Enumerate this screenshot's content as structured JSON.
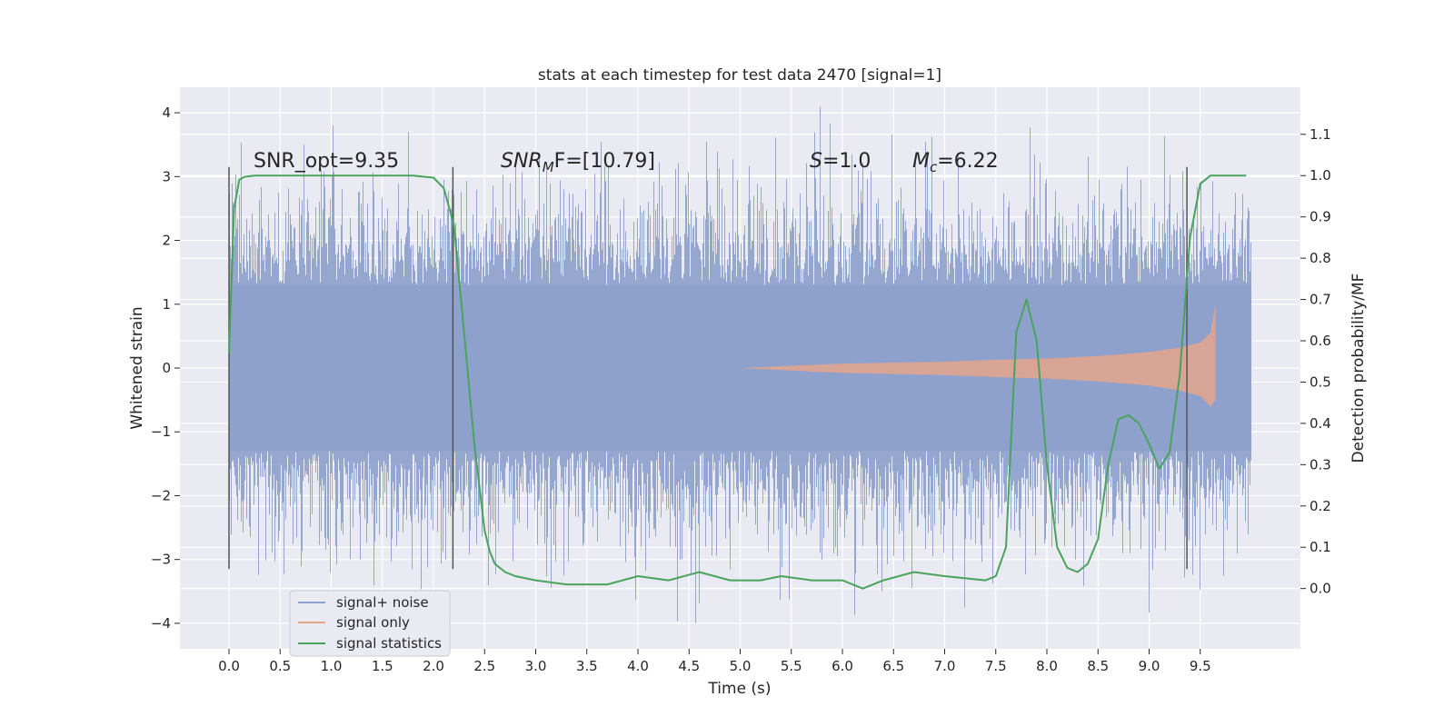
{
  "chart_data": {
    "type": "line",
    "title": "stats at each timestep for test data 2470 [signal=1]",
    "xlabel": "Time (s)",
    "ylabel": "Whitened strain",
    "y2label": "Detection probability/MF",
    "xlim": [
      -0.48,
      10.48
    ],
    "ylim": [
      -4.4,
      4.4
    ],
    "y2lim": [
      -0.146,
      1.214
    ],
    "grid": true,
    "x_ticks": [
      "0.0",
      "0.5",
      "1.0",
      "1.5",
      "2.0",
      "2.5",
      "3.0",
      "3.5",
      "4.0",
      "4.5",
      "5.0",
      "5.5",
      "6.0",
      "6.5",
      "7.0",
      "7.5",
      "8.0",
      "8.5",
      "9.0",
      "9.5"
    ],
    "y_ticks": [
      "4",
      "3",
      "2",
      "1",
      "0",
      "−1",
      "−2",
      "−3",
      "−4"
    ],
    "y2_ticks": [
      "1.1",
      "1.0",
      "0.9",
      "0.8",
      "0.7",
      "0.6",
      "0.5",
      "0.4",
      "0.3",
      "0.2",
      "0.1",
      "0.0"
    ],
    "legend_position": "lower-left",
    "colors": {
      "noise": "#8da0cb",
      "signal": "#e5a48c",
      "statistics": "#4aa35c",
      "vline": "#555555",
      "background": "#eaeaf2",
      "grid": "#ffffff"
    },
    "annotations": {
      "snr_opt": "SNR_opt=9.35",
      "snr_mf_prefix": "SNR",
      "snr_mf_sub": "M",
      "snr_mf_suffix": "F=[10.79]",
      "s_var": "S",
      "s_value": "=1.0",
      "mc_var": "M",
      "mc_sub": "c",
      "mc_value": "=6.22"
    },
    "vertical_lines_x": [
      0.0,
      2.19,
      9.37
    ],
    "series": [
      {
        "name": "signal+ noise",
        "x_range": [
          0.0,
          10.0
        ],
        "envelope_core": [
          -1.3,
          1.3
        ],
        "spike_range": [
          -4.0,
          4.1
        ]
      },
      {
        "name": "signal only",
        "x": [
          5.0,
          6.0,
          7.0,
          7.5,
          8.0,
          8.5,
          9.0,
          9.3,
          9.5,
          9.6,
          9.65
        ],
        "amplitude": [
          0.0,
          0.07,
          0.1,
          0.13,
          0.15,
          0.19,
          0.25,
          0.32,
          0.4,
          0.55,
          1.0
        ]
      },
      {
        "name": "signal statistics",
        "x": [
          0.0,
          0.05,
          0.1,
          0.15,
          0.25,
          0.5,
          1.0,
          1.5,
          1.8,
          2.0,
          2.1,
          2.2,
          2.3,
          2.4,
          2.5,
          2.55,
          2.6,
          2.7,
          2.8,
          3.0,
          3.3,
          3.7,
          4.0,
          4.3,
          4.6,
          4.9,
          5.2,
          5.4,
          5.7,
          6.0,
          6.2,
          6.4,
          6.7,
          7.0,
          7.4,
          7.5,
          7.6,
          7.7,
          7.8,
          7.9,
          8.0,
          8.1,
          8.2,
          8.3,
          8.4,
          8.5,
          8.6,
          8.7,
          8.8,
          8.9,
          9.0,
          9.1,
          9.2,
          9.3,
          9.4,
          9.5,
          9.6,
          9.7,
          9.95
        ],
        "y": [
          0.57,
          0.92,
          0.99,
          0.997,
          1.0,
          1.0,
          1.0,
          1.0,
          1.0,
          0.995,
          0.97,
          0.88,
          0.62,
          0.35,
          0.14,
          0.09,
          0.06,
          0.04,
          0.03,
          0.02,
          0.01,
          0.01,
          0.03,
          0.02,
          0.04,
          0.02,
          0.02,
          0.03,
          0.02,
          0.02,
          0.0,
          0.02,
          0.04,
          0.03,
          0.02,
          0.03,
          0.1,
          0.62,
          0.7,
          0.6,
          0.3,
          0.1,
          0.05,
          0.04,
          0.06,
          0.12,
          0.3,
          0.41,
          0.42,
          0.4,
          0.35,
          0.29,
          0.33,
          0.52,
          0.85,
          0.98,
          1.0,
          1.0,
          1.0
        ]
      }
    ]
  }
}
